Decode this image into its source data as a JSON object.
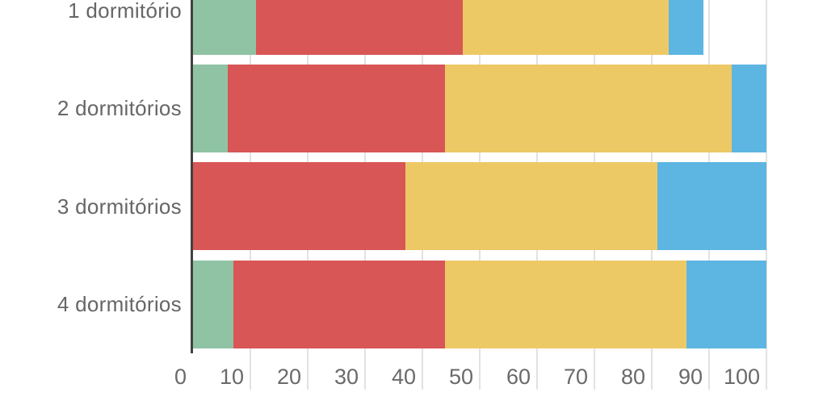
{
  "chart_data": {
    "type": "bar",
    "orientation": "horizontal",
    "stacked": true,
    "categories": [
      "1 dormitório",
      "2 dormitórios",
      "3 dormitórios",
      "4 dormitórios"
    ],
    "series": [
      {
        "name": "series-green",
        "color": "#8fc3a3",
        "values": [
          11,
          6,
          0,
          7
        ]
      },
      {
        "name": "series-red",
        "color": "#d85656",
        "values": [
          36,
          38,
          37,
          37
        ]
      },
      {
        "name": "series-yellow",
        "color": "#edc966",
        "values": [
          36,
          50,
          44,
          42
        ]
      },
      {
        "name": "series-blue",
        "color": "#5db5e2",
        "values": [
          6,
          6,
          19,
          14
        ]
      }
    ],
    "bar_totals": [
      89,
      100,
      100,
      100
    ],
    "xticks": [
      0,
      10,
      20,
      30,
      40,
      50,
      60,
      70,
      80,
      90,
      100
    ],
    "xlabel": "",
    "ylabel": "",
    "title": "",
    "xlim": [
      0,
      110.5
    ],
    "grid": "vertical-gridlines-behind-bars",
    "axis_color": "#414141",
    "grid_color": "#e2e2e2",
    "label_color": "#666666",
    "background": "#ffffff"
  }
}
